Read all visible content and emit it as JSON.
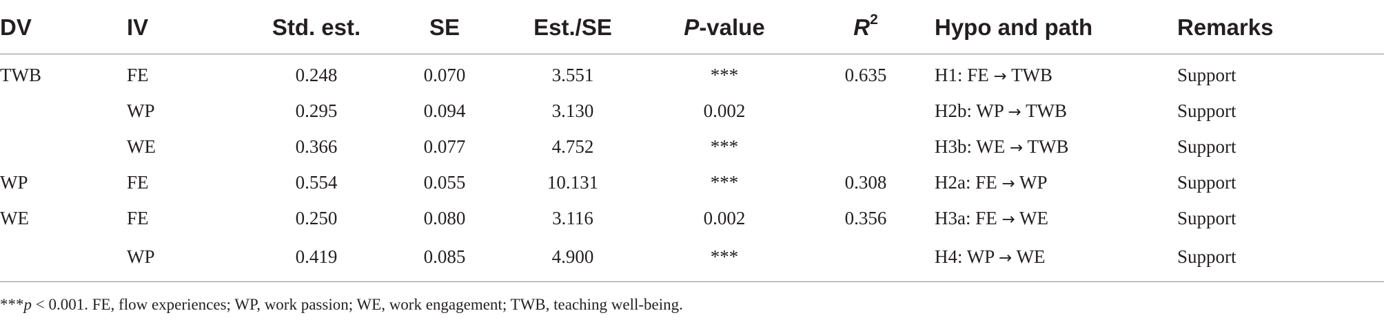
{
  "table": {
    "headers": {
      "dv": "DV",
      "iv": "IV",
      "std_est": "Std. est.",
      "se": "SE",
      "est_se": "Est./SE",
      "p_value_italic": "P",
      "p_value_rest": "-value",
      "r2_base": "R",
      "r2_sup": "2",
      "hypo": "Hypo and path",
      "remarks": "Remarks"
    },
    "rows": [
      {
        "dv": "TWB",
        "iv": "FE",
        "std_est": "0.248",
        "se": "0.070",
        "est_se": "3.551",
        "p": "***",
        "r2": "0.635",
        "hypo_label": "H1: FE",
        "hypo_arrow": "→",
        "hypo_target": "TWB",
        "remarks": "Support"
      },
      {
        "dv": "",
        "iv": "WP",
        "std_est": "0.295",
        "se": "0.094",
        "est_se": "3.130",
        "p": "0.002",
        "r2": "",
        "hypo_label": "H2b: WP",
        "hypo_arrow": "→",
        "hypo_target": "TWB",
        "remarks": "Support"
      },
      {
        "dv": "",
        "iv": "WE",
        "std_est": "0.366",
        "se": "0.077",
        "est_se": "4.752",
        "p": "***",
        "r2": "",
        "hypo_label": "H3b: WE",
        "hypo_arrow": "→",
        "hypo_target": "TWB",
        "remarks": "Support"
      },
      {
        "dv": "WP",
        "iv": "FE",
        "std_est": "0.554",
        "se": "0.055",
        "est_se": "10.131",
        "p": "***",
        "r2": "0.308",
        "hypo_label": "H2a: FE",
        "hypo_arrow": "→",
        "hypo_target": "WP",
        "remarks": "Support"
      },
      {
        "dv": "WE",
        "iv": "FE",
        "std_est": "0.250",
        "se": "0.080",
        "est_se": "3.116",
        "p": "0.002",
        "r2": "0.356",
        "hypo_label": "H3a: FE",
        "hypo_arrow": "→",
        "hypo_target": "WE",
        "remarks": "Support"
      },
      {
        "dv": "",
        "iv": "WP",
        "std_est": "0.419",
        "se": "0.085",
        "est_se": "4.900",
        "p": "***",
        "r2": "",
        "hypo_label": "H4: WP",
        "hypo_arrow": "→",
        "hypo_target": "WE",
        "remarks": "Support"
      }
    ]
  },
  "footnote": {
    "stars": "***",
    "p_italic": "p",
    "rest": " < 0.001. FE, flow experiences; WP, work passion; WE, work engagement; TWB, teaching well-being."
  }
}
